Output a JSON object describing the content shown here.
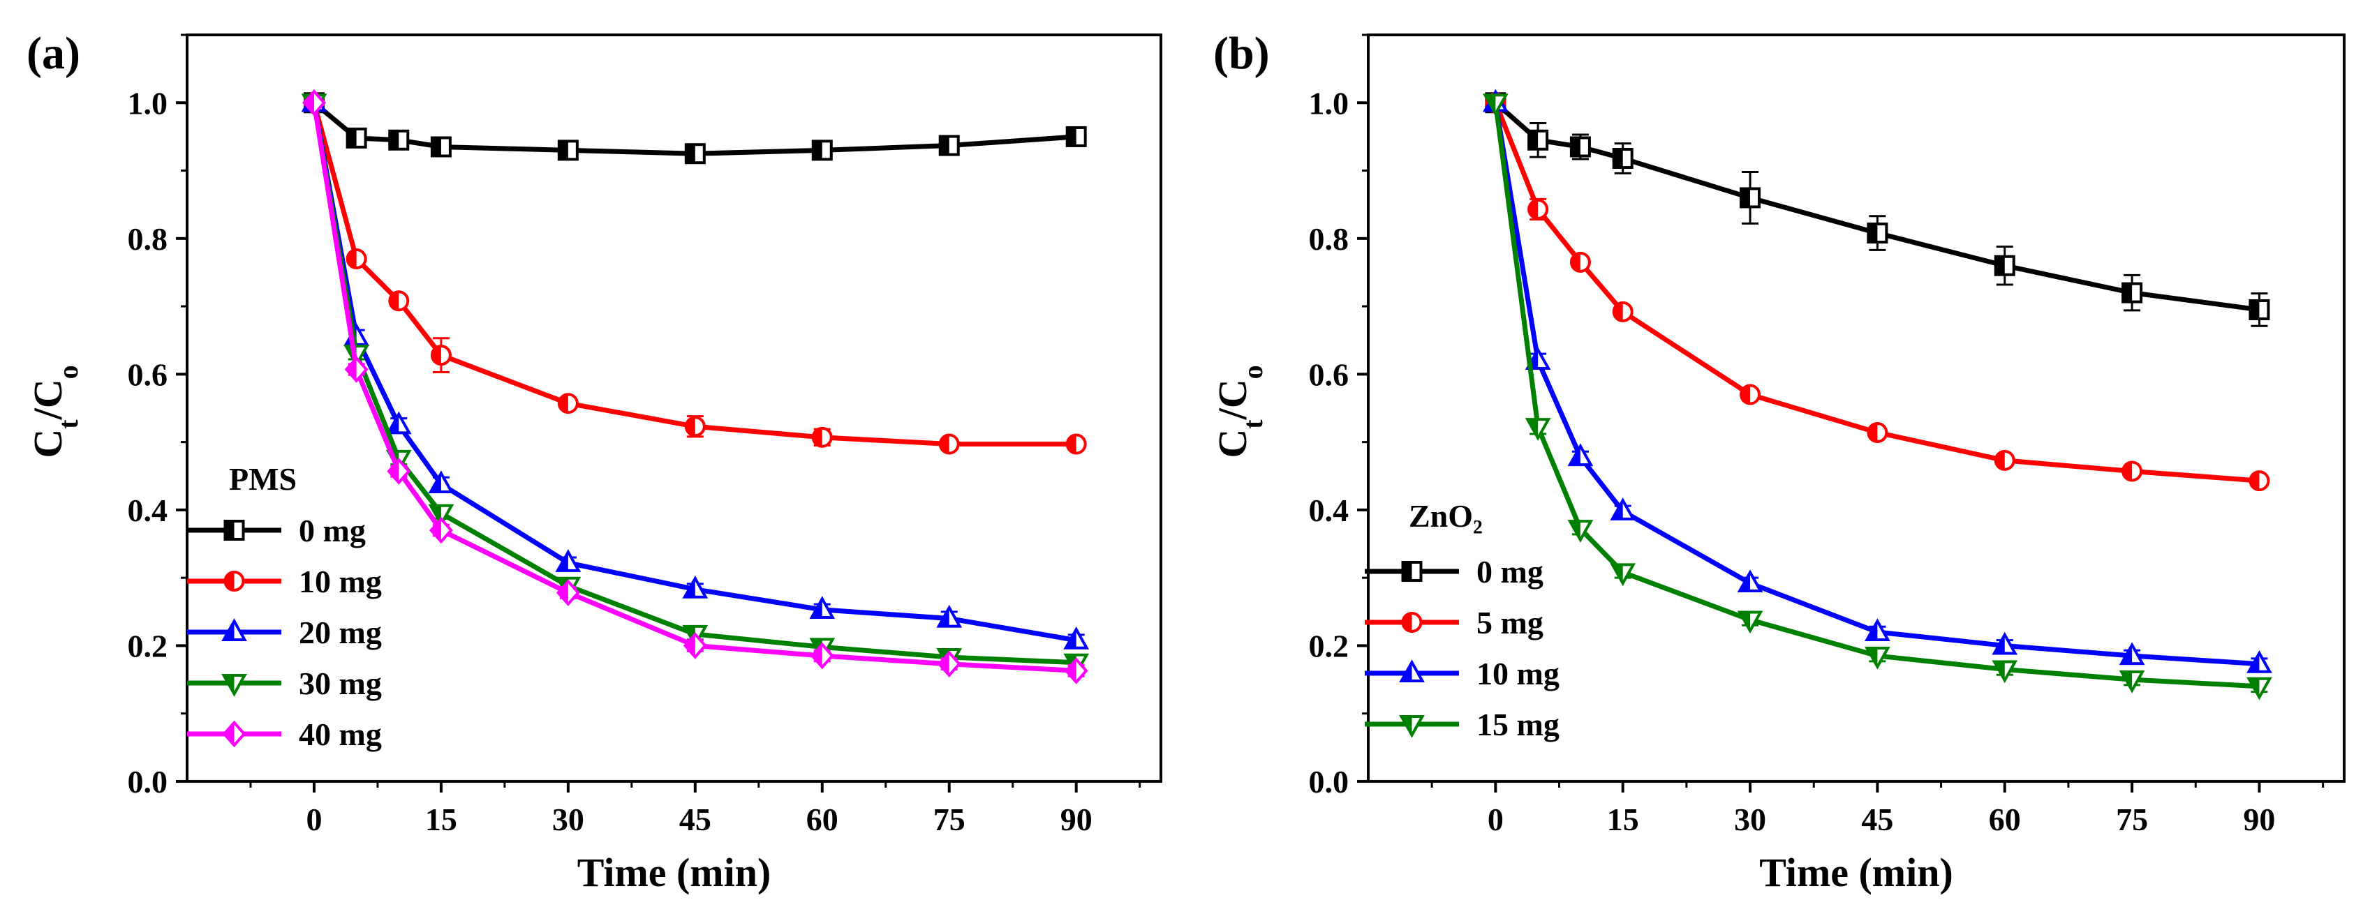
{
  "chart_data": [
    {
      "type": "line",
      "panel_label": "(a)",
      "xlabel": "Time (min)",
      "ylabel_main": "C",
      "ylabel_sub1": "t",
      "ylabel_mid": "/C",
      "ylabel_sub2": "o",
      "xlim": [
        -15,
        100
      ],
      "ylim": [
        0,
        1.1
      ],
      "xticks": [
        0,
        15,
        30,
        45,
        60,
        75,
        90
      ],
      "yticks": [
        0.0,
        0.2,
        0.4,
        0.6,
        0.8,
        1.0
      ],
      "ytick_labels": [
        "0.0",
        "0.2",
        "0.4",
        "0.6",
        "0.8",
        "1.0"
      ],
      "legend_title": "PMS",
      "legend_position": "lower-left",
      "x": [
        0,
        5,
        10,
        15,
        30,
        45,
        60,
        75,
        90
      ],
      "series": [
        {
          "name": "0 mg",
          "color": "#000000",
          "marker": "square",
          "values": [
            1.0,
            0.948,
            0.945,
            0.935,
            0.93,
            0.925,
            0.93,
            0.937,
            0.95
          ],
          "errors": [
            0,
            0.006,
            0.006,
            0.008,
            0.008,
            0.008,
            0.008,
            0.008,
            0.008
          ]
        },
        {
          "name": "10 mg",
          "color": "#ff0000",
          "marker": "circle",
          "values": [
            1.0,
            0.77,
            0.708,
            0.628,
            0.557,
            0.523,
            0.507,
            0.497,
            0.497
          ],
          "errors": [
            0,
            0.008,
            0.008,
            0.025,
            0.008,
            0.015,
            0.012,
            0.008,
            0.008
          ]
        },
        {
          "name": "20 mg",
          "color": "#0000ff",
          "marker": "triangle-up",
          "values": [
            1.0,
            0.655,
            0.525,
            0.438,
            0.322,
            0.283,
            0.253,
            0.24,
            0.208
          ],
          "errors": [
            0,
            0.01,
            0.01,
            0.01,
            0.008,
            0.008,
            0.008,
            0.01,
            0.008
          ]
        },
        {
          "name": "30 mg",
          "color": "#008000",
          "marker": "triangle-down",
          "values": [
            1.0,
            0.63,
            0.475,
            0.395,
            0.288,
            0.217,
            0.198,
            0.183,
            0.175
          ],
          "errors": [
            0,
            0.008,
            0.008,
            0.008,
            0.008,
            0.008,
            0.008,
            0.008,
            0.008
          ]
        },
        {
          "name": "40 mg",
          "color": "#ff00ff",
          "marker": "diamond",
          "values": [
            1.0,
            0.607,
            0.457,
            0.37,
            0.278,
            0.2,
            0.185,
            0.173,
            0.163
          ],
          "errors": [
            0,
            0.008,
            0.008,
            0.008,
            0.008,
            0.008,
            0.008,
            0.008,
            0.008
          ]
        }
      ]
    },
    {
      "type": "line",
      "panel_label": "(b)",
      "xlabel": "Time (min)",
      "ylabel_main": "C",
      "ylabel_sub1": "t",
      "ylabel_mid": "/C",
      "ylabel_sub2": "o",
      "xlim": [
        -15,
        100
      ],
      "ylim": [
        0,
        1.1
      ],
      "xticks": [
        0,
        15,
        30,
        45,
        60,
        75,
        90
      ],
      "yticks": [
        0.0,
        0.2,
        0.4,
        0.6,
        0.8,
        1.0
      ],
      "ytick_labels": [
        "0.0",
        "0.2",
        "0.4",
        "0.6",
        "0.8",
        "1.0"
      ],
      "legend_title": "ZnO₂",
      "legend_position": "lower-left",
      "x": [
        0,
        5,
        10,
        15,
        30,
        45,
        60,
        75,
        90
      ],
      "series": [
        {
          "name": "0 mg",
          "color": "#000000",
          "marker": "square",
          "values": [
            1.0,
            0.945,
            0.935,
            0.918,
            0.86,
            0.808,
            0.76,
            0.72,
            0.695
          ],
          "errors": [
            0,
            0.025,
            0.018,
            0.022,
            0.038,
            0.025,
            0.028,
            0.026,
            0.024
          ]
        },
        {
          "name": "5 mg",
          "color": "#ff0000",
          "marker": "circle",
          "values": [
            1.0,
            0.843,
            0.765,
            0.692,
            0.57,
            0.514,
            0.473,
            0.457,
            0.443
          ],
          "errors": [
            0,
            0.015,
            0.008,
            0.008,
            0.008,
            0.008,
            0.008,
            0.008,
            0.008
          ]
        },
        {
          "name": "10 mg",
          "color": "#0000ff",
          "marker": "triangle-up",
          "values": [
            1.0,
            0.62,
            0.478,
            0.398,
            0.292,
            0.22,
            0.2,
            0.185,
            0.173
          ],
          "errors": [
            0,
            0.01,
            0.008,
            0.008,
            0.008,
            0.008,
            0.008,
            0.008,
            0.008
          ]
        },
        {
          "name": "15 mg",
          "color": "#008000",
          "marker": "triangle-down",
          "values": [
            1.0,
            0.522,
            0.372,
            0.308,
            0.238,
            0.185,
            0.165,
            0.15,
            0.14
          ],
          "errors": [
            0,
            0.01,
            0.008,
            0.008,
            0.008,
            0.008,
            0.008,
            0.008,
            0.008
          ]
        }
      ]
    }
  ]
}
